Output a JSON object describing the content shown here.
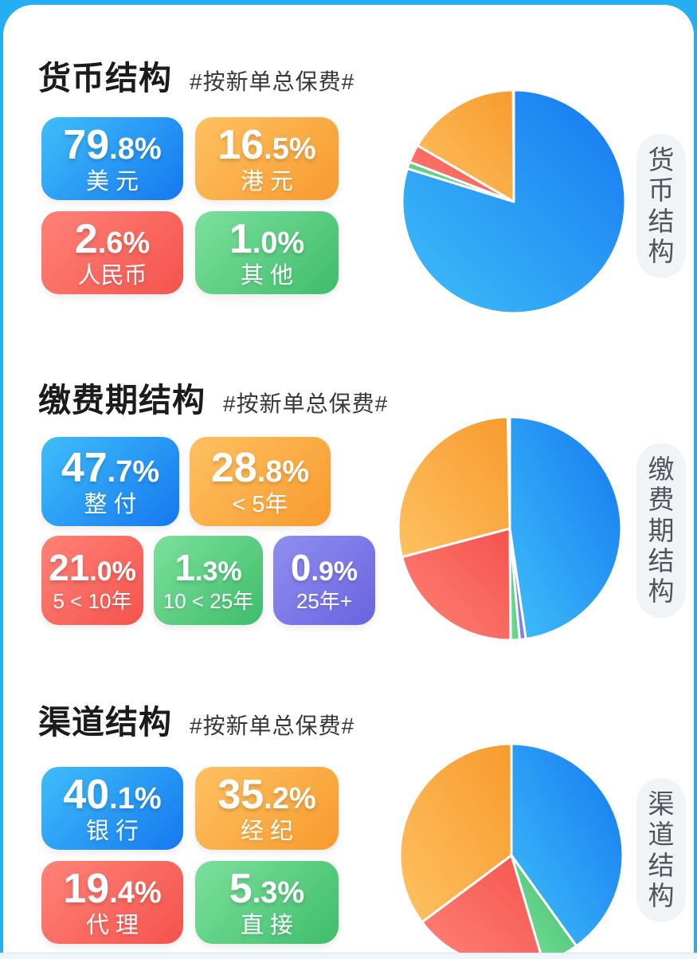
{
  "page": {
    "background_color": "#24aef3",
    "card_color": "#ffffff"
  },
  "colors": {
    "blue": {
      "light": "#3fbef9",
      "dark": "#1578f0"
    },
    "orange": {
      "light": "#ffc161",
      "dark": "#f79a2e"
    },
    "red": {
      "light": "#ff8277",
      "dark": "#f4534d"
    },
    "green": {
      "light": "#7ce09c",
      "dark": "#3fbd6b"
    },
    "purple": {
      "light": "#918ef0",
      "dark": "#6964e0"
    }
  },
  "sections": [
    {
      "title": "货币结构",
      "hashtag": "#按新单总保费#",
      "side_label": "货币结构",
      "stats": [
        {
          "int": "79",
          "rest": ".8%",
          "label": "美 元",
          "color": "blue"
        },
        {
          "int": "16",
          "rest": ".5%",
          "label": "港 元",
          "color": "orange"
        },
        {
          "int": "2",
          "rest": ".6%",
          "label": "人民币",
          "color": "red"
        },
        {
          "int": "1",
          "rest": ".0%",
          "label": "其 他",
          "color": "green"
        }
      ]
    },
    {
      "title": "缴费期结构",
      "hashtag": "#按新单总保费#",
      "side_label": "缴费期结构",
      "stats": [
        {
          "int": "47",
          "rest": ".7%",
          "label": "整 付",
          "color": "blue"
        },
        {
          "int": "28",
          "rest": ".8%",
          "label": "< 5年",
          "color": "orange"
        },
        {
          "int": "21",
          "rest": ".0%",
          "label": "5 < 10年",
          "color": "red"
        },
        {
          "int": "1",
          "rest": ".3%",
          "label": "10 < 25年",
          "color": "green"
        },
        {
          "int": "0",
          "rest": ".9%",
          "label": "25年+",
          "color": "purple"
        }
      ]
    },
    {
      "title": "渠道结构",
      "hashtag": "#按新单总保费#",
      "side_label": "渠道结构",
      "stats": [
        {
          "int": "40",
          "rest": ".1%",
          "label": "银 行",
          "color": "blue"
        },
        {
          "int": "35",
          "rest": ".2%",
          "label": "经 纪",
          "color": "orange"
        },
        {
          "int": "19",
          "rest": ".4%",
          "label": "代 理",
          "color": "red"
        },
        {
          "int": "5",
          "rest": ".3%",
          "label": "直 接",
          "color": "green"
        }
      ]
    }
  ],
  "chart_data": [
    {
      "type": "pie",
      "title": "货币结构",
      "subtitle": "#按新单总保费#",
      "unit": "%",
      "direction": "clockwise-from-top",
      "slices": [
        {
          "label": "美元",
          "value": 79.8,
          "color": "blue"
        },
        {
          "label": "其他",
          "value": 1.0,
          "color": "green"
        },
        {
          "label": "人民币",
          "value": 2.6,
          "color": "red"
        },
        {
          "label": "港元",
          "value": 16.5,
          "color": "orange"
        }
      ]
    },
    {
      "type": "pie",
      "title": "缴费期结构",
      "subtitle": "#按新单总保费#",
      "unit": "%",
      "direction": "clockwise-from-top",
      "slices": [
        {
          "label": "整付",
          "value": 47.7,
          "color": "blue"
        },
        {
          "label": "25年+",
          "value": 0.9,
          "color": "purple"
        },
        {
          "label": "10 < 25年",
          "value": 1.3,
          "color": "green"
        },
        {
          "label": "5 < 10年",
          "value": 21.0,
          "color": "red"
        },
        {
          "label": "< 5年",
          "value": 28.8,
          "color": "orange"
        }
      ]
    },
    {
      "type": "pie",
      "title": "渠道结构",
      "subtitle": "#按新单总保费#",
      "unit": "%",
      "direction": "clockwise-from-top",
      "slices": [
        {
          "label": "银行",
          "value": 40.1,
          "color": "blue"
        },
        {
          "label": "直接",
          "value": 5.3,
          "color": "green"
        },
        {
          "label": "代理",
          "value": 19.4,
          "color": "red"
        },
        {
          "label": "经纪",
          "value": 35.2,
          "color": "orange"
        }
      ]
    }
  ]
}
